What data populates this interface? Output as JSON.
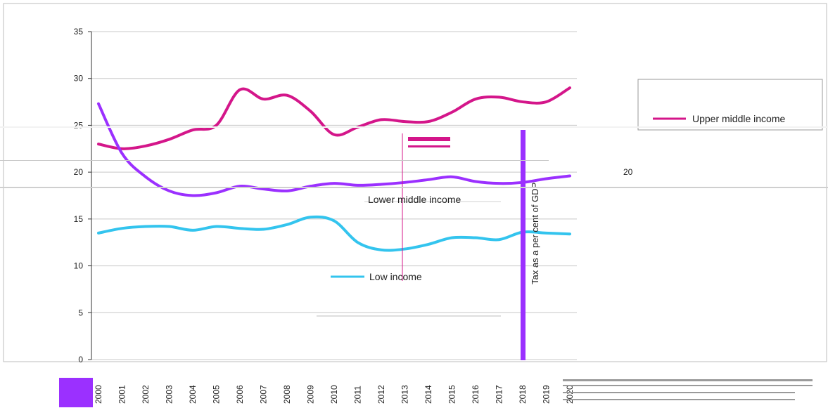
{
  "chart_data": {
    "type": "line",
    "xlabel": "",
    "ylabel": "Tax as a per cent of GDP",
    "ylim": [
      0,
      35
    ],
    "yticks": [
      "0",
      "5",
      "10",
      "15",
      "20",
      "25",
      "30",
      "35"
    ],
    "categories": [
      "2000",
      "2001",
      "2002",
      "2003",
      "2004",
      "2005",
      "2006",
      "2007",
      "2008",
      "2009",
      "2010",
      "2011",
      "2012",
      "2013",
      "2014",
      "2015",
      "2016",
      "2017",
      "2018",
      "2019",
      "2020"
    ],
    "series": [
      {
        "name": "Upper middle income",
        "color": "#d4168a",
        "values": [
          23.0,
          22.5,
          22.8,
          23.5,
          24.5,
          25.0,
          28.8,
          27.8,
          28.2,
          26.5,
          24.0,
          24.8,
          25.6,
          25.4,
          25.4,
          26.4,
          27.8,
          28.0,
          27.5,
          27.5,
          29.0
        ]
      },
      {
        "name": "Lower middle income",
        "color": "#9b30ff",
        "values": [
          27.3,
          22.0,
          19.5,
          18.0,
          17.5,
          17.8,
          18.5,
          18.2,
          18.0,
          18.5,
          18.8,
          18.6,
          18.7,
          18.9,
          19.2,
          19.5,
          19.0,
          18.8,
          18.9,
          19.3,
          19.6
        ]
      },
      {
        "name": "Low income",
        "color": "#33c4ee",
        "values": [
          13.5,
          14.0,
          14.2,
          14.2,
          13.8,
          14.2,
          14.0,
          13.9,
          14.4,
          15.2,
          14.8,
          12.5,
          11.7,
          11.8,
          12.3,
          13.0,
          13.0,
          12.8,
          13.6,
          13.5,
          13.4
        ]
      }
    ],
    "grid": true,
    "legend_position": "right"
  },
  "legend": {
    "upper": "Upper middle income",
    "lower": "Lower middle income",
    "low": "Low income"
  },
  "fragments": {
    "tick20": "20"
  }
}
